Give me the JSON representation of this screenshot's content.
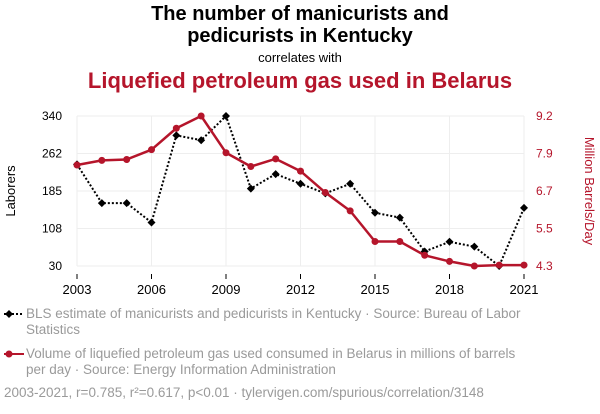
{
  "title": {
    "line1": "The number of manicurists and",
    "line2": "pedicurists in Kentucky",
    "correlates": "correlates with",
    "line4": "Liquefied petroleum gas used in Belarus"
  },
  "legend": {
    "series1": "BLS estimate of manicurists and pedicurists in Kentucky · Source: Bureau of Labor Statistics",
    "series2": "Volume of liquefied petroleum gas used consumed in Belarus in millions of barrels per day · Source: Energy Information Administration"
  },
  "footer": "2003-2021, r=0.785, r²=0.617, p<0.01 · tylervigen.com/spurious/correlation/3148",
  "colors": {
    "series1": "#000000",
    "series2": "#b5152b"
  },
  "chart_data": {
    "type": "line",
    "x": [
      2003,
      2004,
      2005,
      2006,
      2007,
      2008,
      2009,
      2010,
      2011,
      2012,
      2013,
      2014,
      2015,
      2016,
      2017,
      2018,
      2019,
      2020,
      2021
    ],
    "xticks": [
      "2003",
      "2006",
      "2009",
      "2012",
      "2015",
      "2018",
      "2021"
    ],
    "xlim": [
      2003,
      2021
    ],
    "ylabel_left": "Laborers",
    "ylabel_right": "Million Barrels/Day",
    "yticks_left": [
      "340",
      "262",
      "185",
      "108",
      "30"
    ],
    "yticks_right": [
      "9.2",
      "7.9",
      "6.7",
      "5.5",
      "4.3"
    ],
    "ylim_left": [
      30,
      340
    ],
    "ylim_right": [
      4.3,
      9.2
    ],
    "series": [
      {
        "name": "BLS estimate of manicurists and pedicurists in Kentucky",
        "axis": "left",
        "style": "dotted",
        "marker": "diamond",
        "values": [
          240,
          160,
          160,
          120,
          300,
          290,
          340,
          190,
          220,
          200,
          180,
          200,
          140,
          130,
          60,
          80,
          70,
          30,
          150
        ]
      },
      {
        "name": "Volume of liquefied petroleum gas used consumed in Belarus",
        "axis": "right",
        "style": "solid",
        "marker": "circle",
        "values": [
          7.6,
          7.75,
          7.78,
          8.1,
          8.8,
          9.2,
          8.0,
          7.55,
          7.8,
          7.4,
          6.7,
          6.1,
          5.1,
          5.1,
          4.65,
          4.45,
          4.3,
          4.33,
          4.33
        ]
      }
    ]
  }
}
